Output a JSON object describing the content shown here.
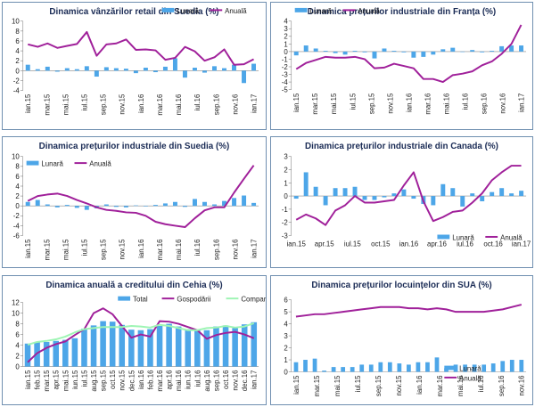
{
  "chart_data": [
    {
      "id": "c1",
      "type": "bar+line",
      "title": "Dinamica vânzărilor retail din Suedia (%)",
      "legend_position": "top-right",
      "ylim": [
        -4,
        10
      ],
      "yticks": [
        -4,
        -2,
        0,
        2,
        4,
        6,
        8,
        10
      ],
      "tick_labels": [
        "ian.15",
        "mar.15",
        "mai.15",
        "iul.15",
        "sep.15",
        "nov.15",
        "ian.16",
        "mar.16",
        "mai.16",
        "iul.16",
        "sep.16",
        "nov.16",
        "ian.17"
      ],
      "tick_label_rotation": "vertical",
      "series": [
        {
          "name": "Lunară",
          "kind": "bar",
          "color": "#4da6e8",
          "values": [
            1.2,
            0.3,
            0.8,
            -0.2,
            0.5,
            0.3,
            0.9,
            -1.2,
            0.7,
            0.5,
            0.4,
            -0.5,
            0.6,
            -0.3,
            0.8,
            2.5,
            -1.4,
            0.6,
            -0.4,
            0.9,
            0.5,
            1.2,
            -2.5,
            1.4
          ]
        },
        {
          "name": "Anuală",
          "kind": "line",
          "color": "#a0209a",
          "values": [
            5.3,
            4.8,
            5.5,
            4.6,
            5.0,
            5.4,
            7.8,
            3.0,
            5.3,
            5.5,
            6.3,
            4.2,
            4.3,
            4.1,
            2.2,
            2.6,
            4.8,
            3.9,
            2.0,
            2.7,
            4.3,
            1.2,
            1.3,
            2.3
          ]
        }
      ]
    },
    {
      "id": "c2",
      "type": "bar+line",
      "title": "Dinamica prețurilor industriale din Franța (%)",
      "legend_position": "top-left",
      "ylim": [
        -5,
        4
      ],
      "yticks": [
        -5,
        -4,
        -3,
        -2,
        -1,
        0,
        1,
        2,
        3,
        4
      ],
      "tick_labels": [
        "ian.15",
        "mar.15",
        "mai.15",
        "iul.15",
        "sep.15",
        "nov.15",
        "ian.16",
        "mar.16",
        "mai.16",
        "iul.16",
        "sep.16",
        "nov.16",
        "ian.17"
      ],
      "tick_label_rotation": "vertical",
      "series": [
        {
          "name": "Lunară",
          "kind": "bar",
          "color": "#4da6e8",
          "values": [
            -0.5,
            0.8,
            0.4,
            0.1,
            -0.2,
            -0.4,
            0.1,
            -0.1,
            -0.9,
            0.4,
            0.1,
            -0.1,
            -0.8,
            -0.7,
            -0.4,
            0.3,
            0.5,
            0.0,
            0.2,
            -0.1,
            0.1,
            0.7,
            0.8,
            0.8
          ]
        },
        {
          "name": "Anuală",
          "kind": "line",
          "color": "#a0209a",
          "values": [
            -2.3,
            -1.5,
            -1.1,
            -0.7,
            -0.8,
            -0.8,
            -0.7,
            -1.0,
            -2.2,
            -2.1,
            -1.6,
            -1.9,
            -2.2,
            -3.6,
            -3.6,
            -4.0,
            -3.1,
            -2.9,
            -2.6,
            -1.8,
            -1.3,
            -0.3,
            1.0,
            3.5
          ]
        }
      ]
    },
    {
      "id": "c3",
      "type": "bar+line",
      "title": "Dinamica prețurilor industriale din Suedia (%)",
      "legend_position": "top-left",
      "ylim": [
        -6,
        10
      ],
      "yticks": [
        -6,
        -4,
        -2,
        0,
        2,
        4,
        6,
        8,
        10
      ],
      "tick_labels": [
        "ian.15",
        "mar.15",
        "mai.15",
        "iul.15",
        "sep.15",
        "nov.15",
        "ian.16",
        "mar.16",
        "mai.16",
        "iul.16",
        "sep.16",
        "nov.16",
        "ian.17"
      ],
      "tick_label_rotation": "vertical",
      "series": [
        {
          "name": "Lunară",
          "kind": "bar",
          "color": "#4da6e8",
          "values": [
            0.8,
            1.2,
            0.3,
            -0.3,
            0.2,
            -0.4,
            -0.8,
            -0.5,
            0.3,
            -0.2,
            -0.3,
            0.1,
            -0.1,
            0.2,
            0.5,
            0.8,
            -0.2,
            1.4,
            0.8,
            0.3,
            1.0,
            1.6,
            2.1,
            0.6
          ]
        },
        {
          "name": "Anuală",
          "kind": "line",
          "color": "#a0209a",
          "values": [
            1.0,
            2.0,
            2.3,
            2.5,
            2.0,
            1.2,
            0.5,
            -0.3,
            -0.8,
            -1.0,
            -1.3,
            -1.4,
            -2.0,
            -3.2,
            -3.7,
            -4.0,
            -4.3,
            -2.5,
            -0.9,
            -0.3,
            -0.3,
            2.7,
            5.5,
            8.2
          ]
        }
      ]
    },
    {
      "id": "c4",
      "type": "bar+line",
      "title": "Dinamica prețurilor industriale din Canada (%)",
      "legend_position": "bottom-right",
      "ylim": [
        -3,
        3
      ],
      "yticks": [
        -3,
        -2,
        -1,
        0,
        1,
        2,
        3
      ],
      "tick_labels": [
        "ian.15",
        "apr.15",
        "iul.15",
        "oct.15",
        "ian.16",
        "apr.16",
        "iul.16",
        "oct.16",
        "ian.17"
      ],
      "tick_label_rotation": "horizontal",
      "series": [
        {
          "name": "Lunară",
          "kind": "bar",
          "color": "#4da6e8",
          "values": [
            -0.2,
            1.8,
            0.7,
            -0.7,
            0.6,
            0.6,
            0.7,
            -0.3,
            -0.3,
            -0.1,
            0.2,
            0.5,
            -0.2,
            -0.6,
            -0.7,
            0.9,
            0.6,
            -0.8,
            0.2,
            -0.4,
            0.3,
            0.6,
            0.2,
            0.4
          ]
        },
        {
          "name": "Anuală",
          "kind": "line",
          "color": "#a0209a",
          "values": [
            -1.8,
            -1.4,
            -1.7,
            -2.2,
            -1.1,
            -0.7,
            0.0,
            -0.5,
            -0.5,
            -0.4,
            -0.3,
            0.8,
            1.8,
            -0.4,
            -1.9,
            -1.6,
            -1.2,
            -1.1,
            -0.5,
            0.2,
            1.2,
            1.8,
            2.3,
            2.3
          ]
        }
      ]
    },
    {
      "id": "c5",
      "type": "bar+line",
      "title": "Dinamica anuală a creditului din Cehia (%)",
      "legend_position": "top",
      "ylim": [
        0,
        12
      ],
      "yticks": [
        0,
        2,
        4,
        6,
        8,
        10,
        12
      ],
      "tick_labels": [
        "ian.15",
        "feb.15",
        "mar.15",
        "apr.15",
        "mai.15",
        "iun.15",
        "iul.15",
        "aug.15",
        "sep.15",
        "oct.15",
        "nov.15",
        "dec.15",
        "ian.16",
        "feb.16",
        "mar.16",
        "apr.16",
        "mai.16",
        "iun.16",
        "iul.16",
        "aug.16",
        "sep.16",
        "oct.16",
        "nov.16",
        "dec.16",
        "ian.17"
      ],
      "tick_label_rotation": "vertical",
      "series": [
        {
          "name": "Total",
          "kind": "bar",
          "color": "#4da6e8",
          "values": [
            4.3,
            4.6,
            4.6,
            4.8,
            5.0,
            5.3,
            7.1,
            7.7,
            8.5,
            8.4,
            7.8,
            6.9,
            6.8,
            7.0,
            7.6,
            8.0,
            7.5,
            7.0,
            6.8,
            6.8,
            7.5,
            7.7,
            7.2,
            7.9,
            8.3
          ]
        },
        {
          "name": "Gospodării",
          "kind": "line",
          "color": "#a0209a",
          "values": [
            0.8,
            2.5,
            3.5,
            4.2,
            4.7,
            5.9,
            7.0,
            10.0,
            10.9,
            9.8,
            7.6,
            5.4,
            6.0,
            5.6,
            8.5,
            8.4,
            8.0,
            7.4,
            6.8,
            5.2,
            5.9,
            6.3,
            6.5,
            6.0,
            5.3
          ]
        },
        {
          "name": "Companii",
          "kind": "line",
          "color": "#9ef5b4",
          "values": [
            4.1,
            4.6,
            4.8,
            5.1,
            5.6,
            6.4,
            7.0,
            7.2,
            7.4,
            7.4,
            7.4,
            7.6,
            7.5,
            7.3,
            7.8,
            7.6,
            7.2,
            6.8,
            6.8,
            7.2,
            7.3,
            7.6,
            7.3,
            7.5,
            8.1
          ]
        }
      ]
    },
    {
      "id": "c6",
      "type": "bar+line",
      "title": "Dinamica prețurilor locuințelor din SUA (%)",
      "legend_position": "bottom-right",
      "ylim": [
        0,
        6
      ],
      "yticks": [
        0,
        1,
        2,
        3,
        4,
        5,
        6
      ],
      "tick_labels": [
        "ian.15",
        "mar.15",
        "mai.15",
        "iul.15",
        "sep.15",
        "nov.15",
        "ian.16",
        "mar.16",
        "mai.16",
        "iul.16",
        "sep.16",
        "nov.16"
      ],
      "tick_label_rotation": "vertical",
      "series": [
        {
          "name": "Lunară",
          "kind": "bar",
          "color": "#4da6e8",
          "values": [
            0.8,
            1.0,
            1.1,
            0.1,
            0.4,
            0.4,
            0.4,
            0.6,
            0.6,
            0.8,
            0.8,
            0.7,
            0.6,
            0.8,
            0.8,
            1.2,
            0.3,
            0.6,
            0.6,
            0.6,
            0.6,
            0.7,
            0.9,
            1.0,
            1.0
          ]
        },
        {
          "name": "Anuală",
          "kind": "line",
          "color": "#a0209a",
          "values": [
            4.6,
            4.7,
            4.8,
            4.8,
            4.9,
            5.0,
            5.1,
            5.2,
            5.3,
            5.4,
            5.4,
            5.4,
            5.3,
            5.3,
            5.2,
            5.3,
            5.2,
            5.0,
            5.0,
            5.0,
            5.0,
            5.1,
            5.2,
            5.4,
            5.6
          ]
        }
      ]
    }
  ]
}
